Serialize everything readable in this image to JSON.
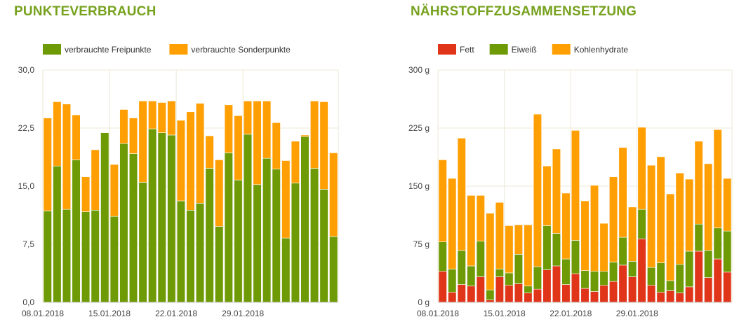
{
  "colors": {
    "title": "#76a21e",
    "green": "#6e9a05",
    "orange": "#ff9f04",
    "red": "#e1351a",
    "grid": "#ede9d6"
  },
  "chart_data": [
    {
      "type": "bar",
      "stacked": true,
      "title": "PUNKTEVERBRAUCH",
      "legend_position": "top-left",
      "grid": true,
      "ylim": [
        0,
        30
      ],
      "y_ticks": [
        "0,0",
        "7,5",
        "15,0",
        "22,5",
        "30,0"
      ],
      "x_labels": [
        "08.01.2018",
        "15.01.2018",
        "22.01.2018",
        "29.01.2018"
      ],
      "series": [
        {
          "name": "verbrauchte Freipunkte",
          "color": "#6e9a05",
          "values": [
            11.8,
            17.6,
            12.0,
            18.4,
            11.7,
            11.9,
            21.9,
            11.1,
            20.5,
            19.2,
            15.5,
            22.4,
            21.9,
            21.6,
            13.1,
            11.9,
            12.8,
            17.3,
            9.8,
            19.3,
            15.8,
            21.7,
            15.2,
            18.6,
            17.2,
            8.3,
            15.4,
            21.4,
            17.3,
            14.6,
            8.5
          ]
        },
        {
          "name": "verbrauchte Sonderpunkte",
          "color": "#ff9f04",
          "values": [
            12.0,
            8.3,
            13.6,
            5.8,
            4.5,
            7.8,
            0.0,
            6.7,
            4.4,
            4.6,
            10.5,
            3.6,
            3.9,
            4.4,
            10.4,
            12.7,
            12.9,
            4.2,
            8.6,
            6.2,
            8.3,
            4.3,
            10.8,
            7.4,
            6.0,
            10.0,
            5.4,
            0.2,
            8.7,
            11.3,
            10.8
          ]
        }
      ]
    },
    {
      "type": "bar",
      "stacked": true,
      "title": "NÄHRSTOFFZUSAMMENSETZUNG",
      "legend_position": "top-left",
      "grid": true,
      "ylim": [
        0,
        300
      ],
      "y_ticks": [
        "0 g",
        "75 g",
        "150 g",
        "225 g",
        "300 g"
      ],
      "x_labels": [
        "08.01.2018",
        "15.01.2018",
        "22.01.2018",
        "29.01.2018"
      ],
      "series": [
        {
          "name": "Fett",
          "color": "#e1351a",
          "values": [
            40,
            13,
            23,
            21,
            33,
            3,
            33,
            22,
            24,
            12,
            17,
            42,
            47,
            23,
            37,
            18,
            14,
            22,
            27,
            48,
            33,
            82,
            22,
            13,
            15,
            12,
            20,
            66,
            32,
            56,
            39
          ]
        },
        {
          "name": "Eiweiß",
          "color": "#6e9a05",
          "values": [
            38,
            30,
            44,
            26,
            46,
            13,
            10,
            16,
            38,
            9,
            29,
            57,
            42,
            33,
            43,
            23,
            26,
            18,
            25,
            36,
            20,
            38,
            23,
            38,
            13,
            37,
            46,
            35,
            35,
            40,
            53
          ]
        },
        {
          "name": "Kohlenhydrate",
          "color": "#ff9f04",
          "values": [
            106,
            117,
            145,
            91,
            59,
            99,
            86,
            61,
            38,
            79,
            197,
            77,
            109,
            85,
            142,
            90,
            111,
            62,
            110,
            116,
            70,
            106,
            132,
            137,
            112,
            118,
            93,
            107,
            112,
            127,
            68
          ]
        }
      ]
    }
  ]
}
